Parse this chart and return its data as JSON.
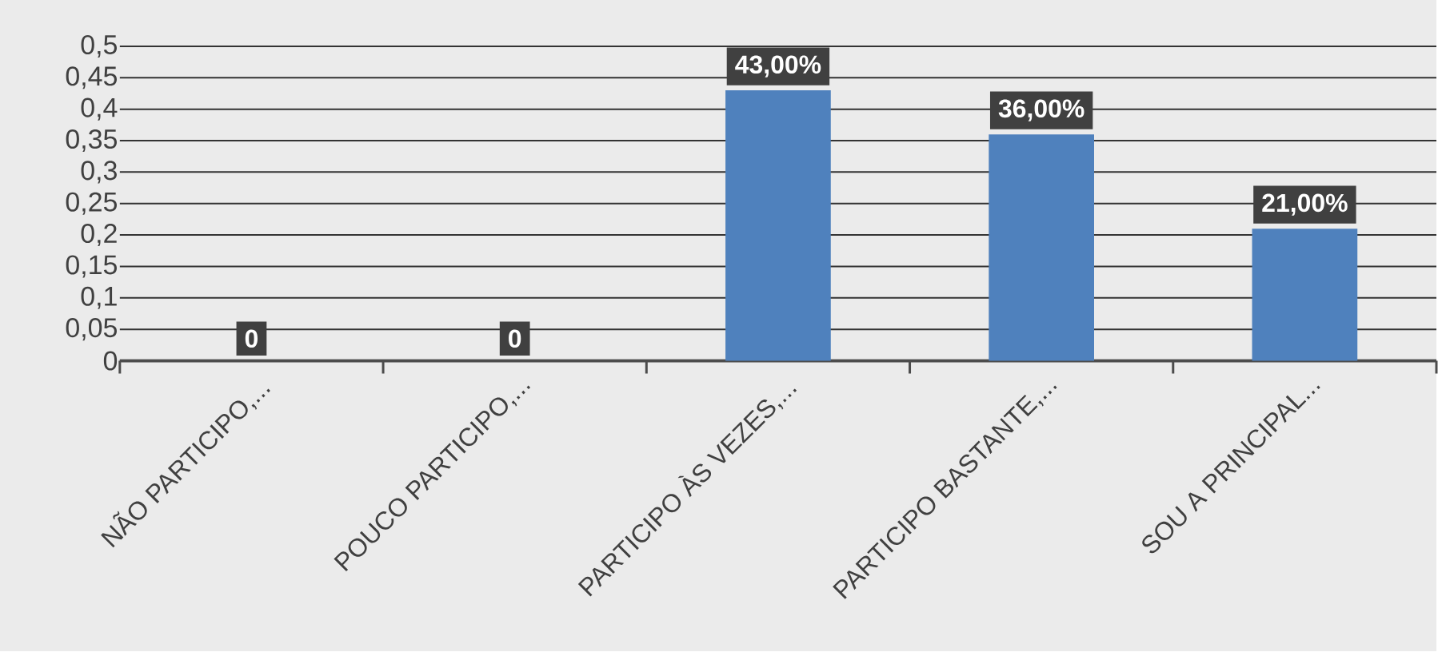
{
  "chart_data": {
    "type": "bar",
    "categories": [
      "NÃO PARTICIPO,...",
      "POUCO PARTICIPO,...",
      "PARTICIPO ÀS VEZES,...",
      "PARTICIPO BASTANTE,...",
      "SOU A PRINCIPAL..."
    ],
    "values": [
      0,
      0,
      0.43,
      0.36,
      0.21
    ],
    "value_labels": [
      "0",
      "0",
      "43,00%",
      "36,00%",
      "21,00%"
    ],
    "color": "#4f81bd",
    "ylim": [
      0,
      0.5
    ],
    "yticks": [
      0,
      {
        "value": 0.05,
        "label": "0,05"
      },
      {
        "value": 0.1,
        "label": "0,1"
      },
      {
        "value": 0.15,
        "label": "0,15"
      },
      {
        "value": 0.2,
        "label": "0,2"
      },
      {
        "value": 0.25,
        "label": "0,25"
      },
      {
        "value": 0.3,
        "label": "0,3"
      },
      {
        "value": 0.35,
        "label": "0,35"
      },
      {
        "value": 0.4,
        "label": "0,4"
      },
      {
        "value": 0.45,
        "label": "0,45"
      },
      {
        "value": 0.5,
        "label": "0,5"
      }
    ],
    "grid": "y"
  }
}
